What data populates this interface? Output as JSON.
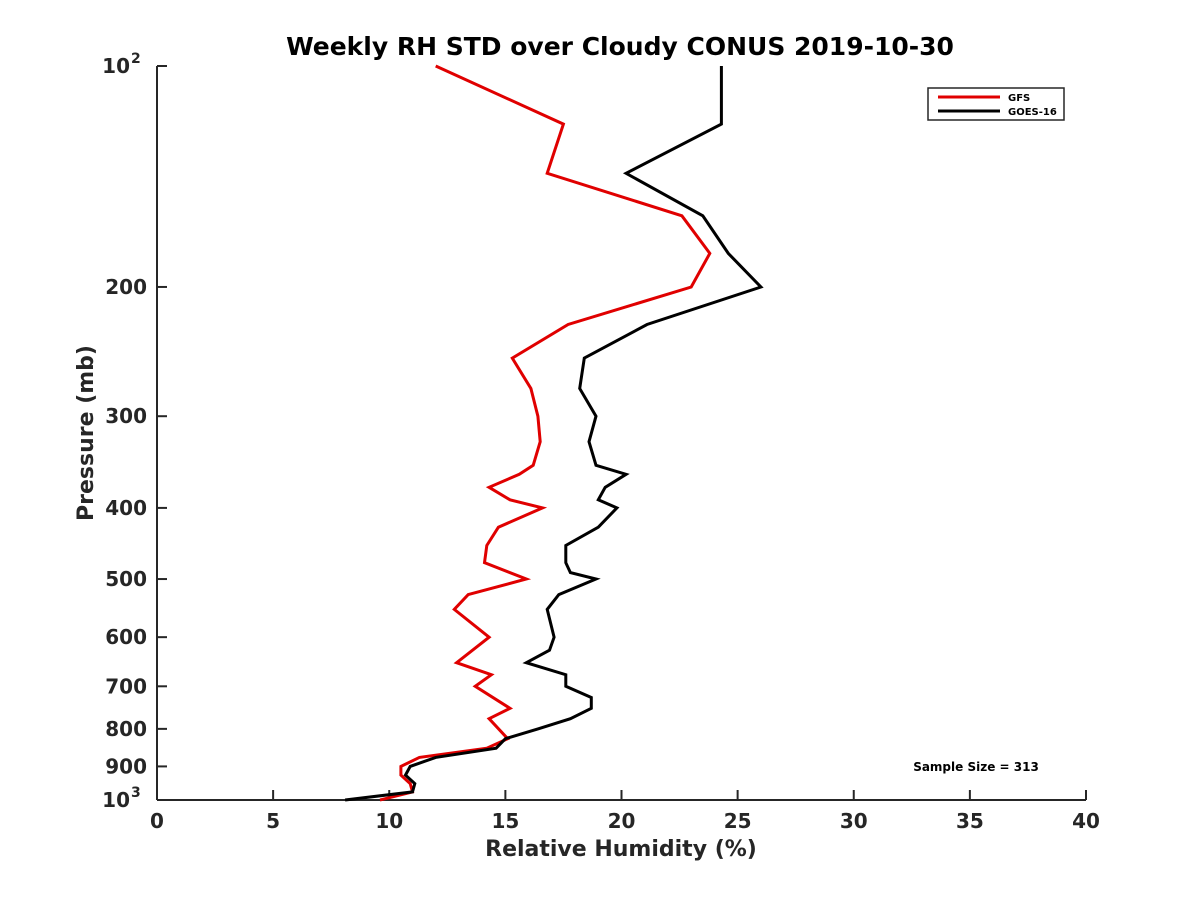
{
  "chart_data": {
    "type": "line",
    "title": "Weekly RH STD over Cloudy CONUS 2019-10-30",
    "xlabel": "Relative Humidity (%)",
    "ylabel": "Pressure (mb)",
    "xlim": [
      0,
      40
    ],
    "ylim": [
      100,
      1000
    ],
    "y_scale": "log",
    "y_reversed": true,
    "grid": false,
    "legend_position": "top-right",
    "x_ticks": [
      {
        "value": 0,
        "label": "0"
      },
      {
        "value": 5,
        "label": "5"
      },
      {
        "value": 10,
        "label": "10"
      },
      {
        "value": 15,
        "label": "15"
      },
      {
        "value": 20,
        "label": "20"
      },
      {
        "value": 25,
        "label": "25"
      },
      {
        "value": 30,
        "label": "30"
      },
      {
        "value": 35,
        "label": "35"
      },
      {
        "value": 40,
        "label": "40"
      }
    ],
    "y_ticks": [
      {
        "value": 100,
        "base": "10",
        "exp": "2"
      },
      {
        "value": 200,
        "base": "200",
        "exp": ""
      },
      {
        "value": 300,
        "base": "300",
        "exp": ""
      },
      {
        "value": 400,
        "base": "400",
        "exp": ""
      },
      {
        "value": 500,
        "base": "500",
        "exp": ""
      },
      {
        "value": 600,
        "base": "600",
        "exp": ""
      },
      {
        "value": 700,
        "base": "700",
        "exp": ""
      },
      {
        "value": 800,
        "base": "800",
        "exp": ""
      },
      {
        "value": 900,
        "base": "900",
        "exp": ""
      },
      {
        "value": 1000,
        "base": "10",
        "exp": "3"
      }
    ],
    "annotation": "Sample Size = 313",
    "series": [
      {
        "name": "GFS",
        "color": "#e00000",
        "points": [
          {
            "x": 12.0,
            "y": 100
          },
          {
            "x": 17.5,
            "y": 120
          },
          {
            "x": 16.8,
            "y": 140
          },
          {
            "x": 22.6,
            "y": 160
          },
          {
            "x": 23.8,
            "y": 180
          },
          {
            "x": 23.0,
            "y": 200
          },
          {
            "x": 17.7,
            "y": 225
          },
          {
            "x": 15.3,
            "y": 250
          },
          {
            "x": 16.1,
            "y": 275
          },
          {
            "x": 16.4,
            "y": 300
          },
          {
            "x": 16.5,
            "y": 325
          },
          {
            "x": 16.2,
            "y": 350
          },
          {
            "x": 15.6,
            "y": 360
          },
          {
            "x": 14.3,
            "y": 375
          },
          {
            "x": 15.2,
            "y": 390
          },
          {
            "x": 16.6,
            "y": 400
          },
          {
            "x": 14.7,
            "y": 425
          },
          {
            "x": 14.2,
            "y": 450
          },
          {
            "x": 14.1,
            "y": 475
          },
          {
            "x": 15.9,
            "y": 500
          },
          {
            "x": 13.4,
            "y": 525
          },
          {
            "x": 12.8,
            "y": 550
          },
          {
            "x": 14.3,
            "y": 600
          },
          {
            "x": 12.9,
            "y": 650
          },
          {
            "x": 14.4,
            "y": 675
          },
          {
            "x": 13.7,
            "y": 700
          },
          {
            "x": 15.2,
            "y": 750
          },
          {
            "x": 14.3,
            "y": 775
          },
          {
            "x": 15.1,
            "y": 825
          },
          {
            "x": 14.2,
            "y": 850
          },
          {
            "x": 11.3,
            "y": 875
          },
          {
            "x": 10.5,
            "y": 900
          },
          {
            "x": 10.5,
            "y": 925
          },
          {
            "x": 10.9,
            "y": 950
          },
          {
            "x": 11.0,
            "y": 975
          },
          {
            "x": 9.6,
            "y": 1000
          }
        ]
      },
      {
        "name": "GOES-16",
        "color": "#000000",
        "points": [
          {
            "x": 24.3,
            "y": 100
          },
          {
            "x": 24.3,
            "y": 120
          },
          {
            "x": 20.2,
            "y": 140
          },
          {
            "x": 23.5,
            "y": 160
          },
          {
            "x": 24.6,
            "y": 180
          },
          {
            "x": 26.0,
            "y": 200
          },
          {
            "x": 21.1,
            "y": 225
          },
          {
            "x": 18.4,
            "y": 250
          },
          {
            "x": 18.2,
            "y": 275
          },
          {
            "x": 18.9,
            "y": 300
          },
          {
            "x": 18.6,
            "y": 325
          },
          {
            "x": 18.9,
            "y": 350
          },
          {
            "x": 20.2,
            "y": 360
          },
          {
            "x": 19.3,
            "y": 375
          },
          {
            "x": 19.0,
            "y": 390
          },
          {
            "x": 19.8,
            "y": 400
          },
          {
            "x": 19.0,
            "y": 425
          },
          {
            "x": 17.6,
            "y": 450
          },
          {
            "x": 17.6,
            "y": 475
          },
          {
            "x": 17.8,
            "y": 490
          },
          {
            "x": 18.9,
            "y": 500
          },
          {
            "x": 17.3,
            "y": 525
          },
          {
            "x": 16.8,
            "y": 550
          },
          {
            "x": 17.1,
            "y": 600
          },
          {
            "x": 16.9,
            "y": 625
          },
          {
            "x": 15.9,
            "y": 650
          },
          {
            "x": 17.6,
            "y": 675
          },
          {
            "x": 17.6,
            "y": 700
          },
          {
            "x": 18.7,
            "y": 725
          },
          {
            "x": 18.7,
            "y": 750
          },
          {
            "x": 17.8,
            "y": 775
          },
          {
            "x": 16.4,
            "y": 800
          },
          {
            "x": 15.0,
            "y": 825
          },
          {
            "x": 14.6,
            "y": 850
          },
          {
            "x": 12.0,
            "y": 875
          },
          {
            "x": 10.9,
            "y": 900
          },
          {
            "x": 10.7,
            "y": 925
          },
          {
            "x": 11.1,
            "y": 950
          },
          {
            "x": 11.0,
            "y": 975
          },
          {
            "x": 8.1,
            "y": 1000
          }
        ]
      }
    ]
  }
}
